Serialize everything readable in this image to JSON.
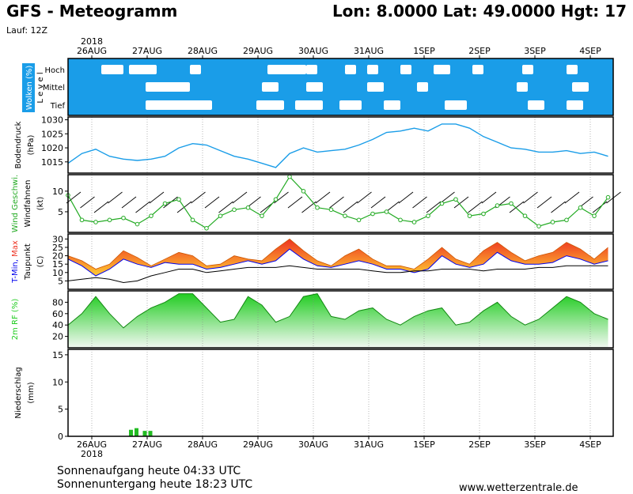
{
  "header": {
    "title": "GFS - Meteogramm",
    "location": "Lon: 8.0000 Lat: 49.0000 Hgt: 17",
    "run": "Lauf: 12Z"
  },
  "footer": {
    "sunrise": "Sonnenaufgang heute 04:33 UTC",
    "sunset": "Sonnenuntergang heute 18:23 UTC",
    "source": "www.wetterzentrale.de"
  },
  "colors": {
    "cloud_panel": "#1a9de8",
    "pressure_line": "#1a9de8",
    "wind_speed": "#22aa22",
    "tmax_fill_top": "#ee3322",
    "tmin_line": "#0000ee",
    "dewpoint_line": "#000000",
    "humidity": "#22cc22",
    "precip": "#22bb22"
  },
  "chart_data": [
    {
      "type": "heatmap",
      "panel": "clouds",
      "ylabel": "Wolken (%)",
      "ylabel2": "L e v e l",
      "levels": [
        "Hoch",
        "Mittel",
        "Tief"
      ],
      "x_ticks": [
        "26AUG",
        "27AUG",
        "28AUG",
        "29AUG",
        "30AUG",
        "31AUG",
        "1SEP",
        "2SEP",
        "3SEP",
        "4SEP"
      ],
      "year_label": "2018"
    },
    {
      "type": "line",
      "panel": "pressure",
      "ylabel": "Bodendruck",
      "unit": "(hPa)",
      "ylim": [
        1011,
        1031
      ],
      "yticks": [
        1015,
        1020,
        1025,
        1030
      ],
      "x": [
        0,
        0.25,
        0.5,
        0.75,
        1,
        1.25,
        1.5,
        1.75,
        2,
        2.25,
        2.5,
        2.75,
        3,
        3.25,
        3.5,
        3.75,
        4,
        4.25,
        4.5,
        4.75,
        5,
        5.25,
        5.5,
        5.75,
        6,
        6.25,
        6.5,
        6.75,
        7,
        7.25,
        7.5,
        7.75,
        8,
        8.25,
        8.5,
        8.75,
        9,
        9.25,
        9.5,
        9.75
      ],
      "values": [
        1014.5,
        1018,
        1019.5,
        1017,
        1016,
        1015.5,
        1016,
        1017,
        1020,
        1021.5,
        1021,
        1019,
        1017,
        1016,
        1014.5,
        1013,
        1018,
        1020,
        1018.5,
        1019,
        1019.5,
        1021,
        1023,
        1025.5,
        1026,
        1027,
        1026,
        1028.5,
        1028.5,
        1027,
        1024,
        1022,
        1020,
        1019.5,
        1018.5,
        1018.5,
        1019,
        1018,
        1018.5,
        1017
      ]
    },
    {
      "type": "line",
      "panel": "wind",
      "ylabel": "Wind Geschwi.",
      "ylabel2": "Windfahnen",
      "unit": "(kt)",
      "ylim": [
        0,
        14
      ],
      "yticks": [
        5,
        10
      ],
      "x": [
        0,
        0.25,
        0.5,
        0.75,
        1,
        1.25,
        1.5,
        1.75,
        2,
        2.25,
        2.5,
        2.75,
        3,
        3.25,
        3.5,
        3.75,
        4,
        4.25,
        4.5,
        4.75,
        5,
        5.25,
        5.5,
        5.75,
        6,
        6.25,
        6.5,
        6.75,
        7,
        7.25,
        7.5,
        7.75,
        8,
        8.25,
        8.5,
        8.75,
        9,
        9.25,
        9.5,
        9.75
      ],
      "values": [
        9,
        3,
        2.5,
        3,
        3.5,
        2,
        4,
        7,
        8,
        3,
        1,
        4,
        5.5,
        6,
        4,
        8,
        13.5,
        10,
        6,
        5.5,
        4,
        3,
        4.5,
        5,
        3,
        2.5,
        4,
        7,
        8,
        4,
        4.5,
        6.5,
        7,
        4,
        1.5,
        2.5,
        3,
        6,
        4,
        8.5
      ]
    },
    {
      "type": "area",
      "panel": "temperature",
      "ylabel": "T-Min, Max",
      "ylabel2": "Taupunkt",
      "unit": "(C)",
      "ylim": [
        0,
        33
      ],
      "yticks": [
        5,
        10,
        15,
        20,
        25,
        30
      ],
      "x": [
        0,
        0.25,
        0.5,
        0.75,
        1,
        1.25,
        1.5,
        1.75,
        2,
        2.25,
        2.5,
        2.75,
        3,
        3.25,
        3.5,
        3.75,
        4,
        4.25,
        4.5,
        4.75,
        5,
        5.25,
        5.5,
        5.75,
        6,
        6.25,
        6.5,
        6.75,
        7,
        7.25,
        7.5,
        7.75,
        8,
        8.25,
        8.5,
        8.75,
        9,
        9.25,
        9.5,
        9.75
      ],
      "series": [
        {
          "name": "Max",
          "values": [
            20,
            17,
            12,
            15,
            23,
            19,
            14,
            18,
            22,
            20,
            14,
            15,
            20,
            18,
            17,
            24,
            30,
            23,
            17,
            14,
            20,
            24,
            18,
            14,
            14,
            12,
            18,
            25,
            18,
            15,
            23,
            28,
            22,
            17,
            20,
            22,
            28,
            24,
            18,
            25
          ]
        },
        {
          "name": "Min",
          "values": [
            18,
            14,
            8,
            12,
            18,
            15,
            13,
            16,
            15,
            15,
            12,
            13,
            15,
            17,
            15,
            17,
            24,
            18,
            14,
            13,
            15,
            17,
            15,
            12,
            12,
            10,
            12,
            20,
            15,
            13,
            15,
            22,
            17,
            15,
            15,
            16,
            20,
            18,
            15,
            17
          ]
        },
        {
          "name": "Taupunkt",
          "values": [
            5,
            6,
            7,
            6,
            4,
            5,
            8,
            10,
            12,
            12,
            10,
            11,
            12,
            13,
            13,
            13,
            14,
            13,
            12,
            12,
            12,
            12,
            11,
            10,
            10,
            11,
            11,
            12,
            12,
            12,
            11,
            12,
            12,
            12,
            13,
            13,
            14,
            14,
            14,
            14
          ]
        }
      ]
    },
    {
      "type": "area",
      "panel": "humidity",
      "ylabel": "2m RF (%)",
      "ylim": [
        0,
        100
      ],
      "yticks": [
        20,
        40,
        60,
        80
      ],
      "x": [
        0,
        0.25,
        0.5,
        0.75,
        1,
        1.25,
        1.5,
        1.75,
        2,
        2.25,
        2.5,
        2.75,
        3,
        3.25,
        3.5,
        3.75,
        4,
        4.25,
        4.5,
        4.75,
        5,
        5.25,
        5.5,
        5.75,
        6,
        6.25,
        6.5,
        6.75,
        7,
        7.25,
        7.5,
        7.75,
        8,
        8.25,
        8.5,
        8.75,
        9,
        9.25,
        9.5,
        9.75
      ],
      "values": [
        40,
        60,
        90,
        60,
        35,
        55,
        70,
        80,
        95,
        95,
        70,
        45,
        50,
        90,
        75,
        45,
        55,
        90,
        95,
        55,
        50,
        65,
        70,
        50,
        40,
        55,
        65,
        70,
        40,
        45,
        65,
        80,
        55,
        40,
        50,
        70,
        90,
        80,
        60,
        50
      ]
    },
    {
      "type": "bar",
      "panel": "precipitation",
      "ylabel": "Niederschlag",
      "unit": "(mm)",
      "ylim": [
        0,
        16
      ],
      "yticks": [
        0,
        5,
        10,
        15
      ],
      "x": [
        1.1,
        1.2,
        1.35,
        1.45
      ],
      "values": [
        1.2,
        1.5,
        1.0,
        1.0
      ]
    }
  ]
}
